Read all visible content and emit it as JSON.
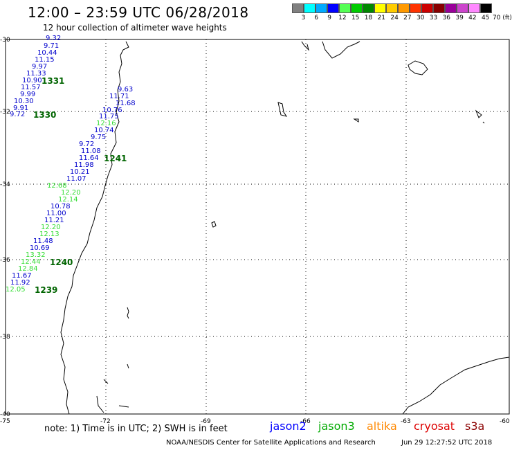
{
  "header": {
    "title": "12:00 – 23:59 UTC 06/28/2018",
    "subtitle": "12 hour collection of altimeter wave heights"
  },
  "color_scale": {
    "colors": [
      "#808080",
      "#00ffff",
      "#00aaff",
      "#0000ff",
      "#55ff55",
      "#00cc00",
      "#008800",
      "#ffff00",
      "#ffcc00",
      "#ff9900",
      "#ff3300",
      "#cc0000",
      "#880000",
      "#990099",
      "#cc44cc",
      "#ff88ff",
      "#000000"
    ],
    "labels": [
      "3",
      "6",
      "9",
      "12",
      "15",
      "18",
      "21",
      "24",
      "27",
      "30",
      "33",
      "36",
      "39",
      "42",
      "45",
      "70 (ft)"
    ]
  },
  "map": {
    "lat_labels": [
      "-30",
      "-32",
      "-34",
      "-36",
      "-38",
      "-40"
    ],
    "lon_labels": [
      "-75",
      "-72",
      "-69",
      "-66",
      "-63",
      "-60"
    ]
  },
  "pass_labels": [
    "1331",
    "1330",
    "1241",
    "1240",
    "1239"
  ],
  "track_values": [
    {
      "text": "9.32",
      "sat": "jason2"
    },
    {
      "text": "9.71",
      "sat": "jason2"
    },
    {
      "text": "10.44",
      "sat": "jason2"
    },
    {
      "text": "11.15",
      "sat": "jason2"
    },
    {
      "text": "9.97",
      "sat": "jason2"
    },
    {
      "text": "11.33",
      "sat": "jason2"
    },
    {
      "text": "10.90",
      "sat": "jason2"
    },
    {
      "text": "11.57",
      "sat": "jason2"
    },
    {
      "text": "9.99",
      "sat": "jason2"
    },
    {
      "text": "10.30",
      "sat": "jason2"
    },
    {
      "text": "9.91",
      "sat": "jason2"
    },
    {
      "text": "9.72",
      "sat": "jason2"
    },
    {
      "text": "9.63",
      "sat": "jason2"
    },
    {
      "text": "11.71",
      "sat": "jason2"
    },
    {
      "text": "11.68",
      "sat": "jason2"
    },
    {
      "text": "10.76",
      "sat": "jason2"
    },
    {
      "text": "11.75",
      "sat": "jason2"
    },
    {
      "text": "12.16",
      "sat": "jason3"
    },
    {
      "text": "10.74",
      "sat": "jason2"
    },
    {
      "text": "9.75",
      "sat": "jason2"
    },
    {
      "text": "9.72",
      "sat": "jason2"
    },
    {
      "text": "11.08",
      "sat": "jason2"
    },
    {
      "text": "11.64",
      "sat": "jason2"
    },
    {
      "text": "11.98",
      "sat": "jason2"
    },
    {
      "text": "10.21",
      "sat": "jason2"
    },
    {
      "text": "11.07",
      "sat": "jason2"
    },
    {
      "text": "12.68",
      "sat": "jason3"
    },
    {
      "text": "12.20",
      "sat": "jason3"
    },
    {
      "text": "12.14",
      "sat": "jason3"
    },
    {
      "text": "10.78",
      "sat": "jason2"
    },
    {
      "text": "11.00",
      "sat": "jason2"
    },
    {
      "text": "11.21",
      "sat": "jason2"
    },
    {
      "text": "12.20",
      "sat": "jason3"
    },
    {
      "text": "12.13",
      "sat": "jason3"
    },
    {
      "text": "11.48",
      "sat": "jason2"
    },
    {
      "text": "10.69",
      "sat": "jason2"
    },
    {
      "text": "13.32",
      "sat": "jason3"
    },
    {
      "text": "12.44",
      "sat": "jason3"
    },
    {
      "text": "12.84",
      "sat": "jason3"
    },
    {
      "text": "11.67",
      "sat": "jason2"
    },
    {
      "text": "11.92",
      "sat": "jason2"
    },
    {
      "text": "12.05",
      "sat": "jason3"
    }
  ],
  "sat_colors": {
    "jason2": "#0000cc",
    "jason3": "#33dd33"
  },
  "note": "note:  1) Time is in UTC;  2) SWH is in feet",
  "legend": [
    {
      "label": "jason2",
      "color": "#0000ff"
    },
    {
      "label": "jason3",
      "color": "#00aa00"
    },
    {
      "label": "altika",
      "color": "#ff8800"
    },
    {
      "label": "cryosat",
      "color": "#dd0000"
    },
    {
      "label": "s3a",
      "color": "#8b0000"
    }
  ],
  "footer": {
    "credit": "NOAA/NESDIS Center for Satellite Applications and Research",
    "timestamp": "Jun 29 12:27:52 UTC 2018"
  }
}
